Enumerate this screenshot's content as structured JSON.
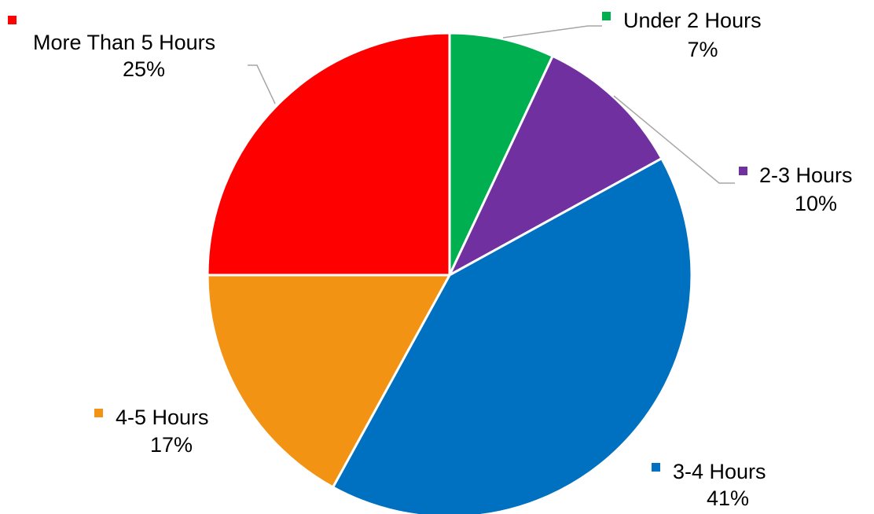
{
  "chart_data": {
    "type": "pie",
    "title": "",
    "start_angle_deg": 0,
    "direction": "clockwise",
    "label_style": "category name with percentage, color key square",
    "slices": [
      {
        "name": "Under 2 Hours",
        "value": 7,
        "label": "7%",
        "color": "#00B050"
      },
      {
        "name": "2-3 Hours",
        "value": 10,
        "label": "10%",
        "color": "#7030A0"
      },
      {
        "name": "3-4 Hours",
        "value": 41,
        "label": "41%",
        "color": "#0070C0"
      },
      {
        "name": "4-5 Hours",
        "value": 17,
        "label": "17%",
        "color": "#F39313"
      },
      {
        "name": "More Than 5 Hours",
        "value": 25,
        "label": "25%",
        "color": "#FF0000"
      }
    ]
  }
}
